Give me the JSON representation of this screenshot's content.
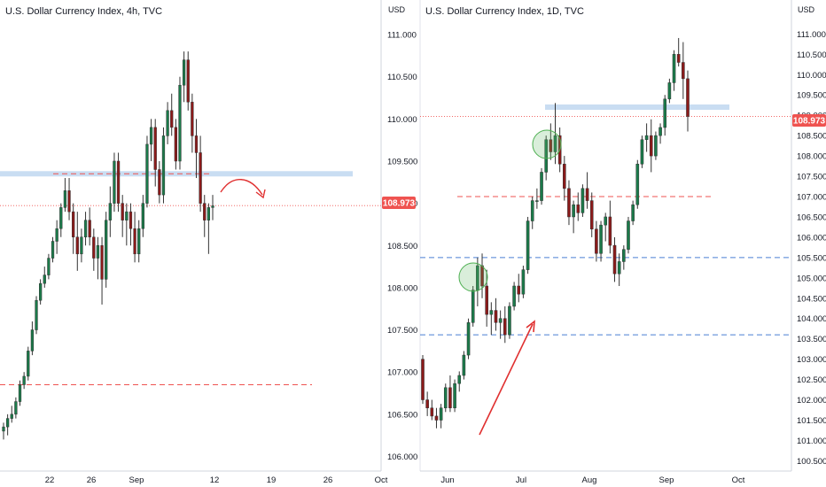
{
  "chart_data": [
    {
      "type": "candlestick",
      "title": "U.S. Dollar Currency Index, 4h, TVC",
      "unit": "USD",
      "ylim": [
        105.9,
        111.2
      ],
      "y_ticks": [
        "111.000",
        "110.500",
        "110.000",
        "109.500",
        "109.000",
        "108.500",
        "108.000",
        "107.500",
        "107.000",
        "106.500",
        "106.000"
      ],
      "x_ticks": [
        "22",
        "26",
        "Sep",
        "12",
        "19",
        "26",
        "Oct"
      ],
      "last_price": "108.973",
      "candles_ohlc": [
        [
          106.3,
          106.4,
          106.2,
          106.35
        ],
        [
          106.35,
          106.5,
          106.25,
          106.45
        ],
        [
          106.45,
          106.6,
          106.4,
          106.5
        ],
        [
          106.5,
          106.7,
          106.45,
          106.65
        ],
        [
          106.65,
          106.9,
          106.6,
          106.85
        ],
        [
          106.85,
          107.0,
          106.8,
          106.95
        ],
        [
          106.95,
          107.3,
          106.9,
          107.25
        ],
        [
          107.25,
          107.6,
          107.2,
          107.5
        ],
        [
          107.5,
          107.9,
          107.45,
          107.85
        ],
        [
          107.85,
          108.1,
          107.8,
          108.05
        ],
        [
          108.05,
          108.25,
          108.0,
          108.15
        ],
        [
          108.15,
          108.4,
          108.1,
          108.35
        ],
        [
          108.35,
          108.6,
          108.3,
          108.55
        ],
        [
          108.55,
          108.8,
          108.4,
          108.7
        ],
        [
          108.7,
          109.0,
          108.6,
          108.95
        ],
        [
          108.95,
          109.3,
          108.9,
          109.15
        ],
        [
          109.15,
          109.3,
          108.8,
          108.9
        ],
        [
          108.9,
          109.0,
          108.4,
          108.6
        ],
        [
          108.6,
          108.9,
          108.2,
          108.4
        ],
        [
          108.4,
          108.7,
          108.3,
          108.6
        ],
        [
          108.6,
          108.9,
          108.5,
          108.8
        ],
        [
          108.8,
          108.95,
          108.5,
          108.6
        ],
        [
          108.6,
          108.7,
          108.2,
          108.35
        ],
        [
          108.35,
          108.6,
          108.1,
          108.5
        ],
        [
          108.5,
          108.6,
          107.8,
          108.1
        ],
        [
          108.1,
          108.9,
          108.0,
          108.8
        ],
        [
          108.8,
          109.2,
          108.6,
          109.0
        ],
        [
          109.0,
          109.6,
          108.9,
          109.5
        ],
        [
          109.5,
          109.6,
          108.9,
          109.0
        ],
        [
          109.0,
          109.1,
          108.6,
          108.8
        ],
        [
          108.8,
          109.0,
          108.5,
          108.9
        ],
        [
          108.9,
          109.0,
          108.5,
          108.7
        ],
        [
          108.7,
          108.9,
          108.3,
          108.4
        ],
        [
          108.4,
          108.8,
          108.3,
          108.7
        ],
        [
          108.7,
          109.1,
          108.6,
          109.0
        ],
        [
          109.0,
          109.8,
          108.95,
          109.7
        ],
        [
          109.7,
          110.0,
          109.5,
          109.9
        ],
        [
          109.9,
          110.0,
          109.2,
          109.4
        ],
        [
          109.4,
          109.5,
          109.0,
          109.1
        ],
        [
          109.1,
          109.9,
          109.0,
          109.8
        ],
        [
          109.8,
          110.2,
          109.7,
          110.1
        ],
        [
          110.1,
          110.3,
          109.8,
          109.9
        ],
        [
          109.9,
          110.0,
          109.4,
          109.5
        ],
        [
          109.5,
          110.5,
          109.4,
          110.4
        ],
        [
          110.4,
          110.8,
          110.2,
          110.7
        ],
        [
          110.7,
          110.8,
          110.1,
          110.2
        ],
        [
          110.2,
          110.3,
          109.6,
          109.8
        ],
        [
          109.8,
          110.0,
          109.3,
          109.6
        ],
        [
          109.6,
          109.8,
          108.9,
          109.0
        ],
        [
          109.0,
          109.1,
          108.6,
          108.8
        ],
        [
          108.8,
          109.0,
          108.4,
          108.95
        ],
        [
          108.95,
          109.1,
          108.8,
          108.97
        ]
      ],
      "annotations": {
        "resistance_band": 109.35,
        "red_dashed_levels": [
          109.35,
          106.85
        ],
        "last_price_line": 108.973,
        "curved_arrow": "projected move"
      }
    },
    {
      "type": "candlestick",
      "title": "U.S. Dollar Currency Index, 1D, TVC",
      "unit": "USD",
      "ylim": [
        100.4,
        111.4
      ],
      "y_ticks": [
        "111.000",
        "110.500",
        "110.000",
        "109.500",
        "109.000",
        "108.500",
        "108.000",
        "107.500",
        "107.000",
        "106.500",
        "106.000",
        "105.500",
        "105.000",
        "104.500",
        "104.000",
        "103.500",
        "103.000",
        "102.500",
        "102.000",
        "101.500",
        "101.000",
        "100.500"
      ],
      "x_ticks": [
        "Jun",
        "Jul",
        "Aug",
        "Sep",
        "Oct"
      ],
      "last_price": "108.973",
      "candles_ohlc": [
        [
          103.0,
          103.1,
          101.9,
          102.0
        ],
        [
          102.0,
          102.2,
          101.6,
          101.8
        ],
        [
          101.8,
          102.0,
          101.5,
          101.6
        ],
        [
          101.6,
          101.8,
          101.3,
          101.5
        ],
        [
          101.5,
          101.9,
          101.3,
          101.8
        ],
        [
          101.8,
          102.4,
          101.7,
          102.3
        ],
        [
          102.3,
          102.6,
          101.7,
          101.8
        ],
        [
          101.8,
          102.5,
          101.7,
          102.4
        ],
        [
          102.4,
          102.7,
          102.2,
          102.6
        ],
        [
          102.6,
          103.2,
          102.5,
          103.1
        ],
        [
          103.1,
          104.0,
          103.0,
          103.9
        ],
        [
          103.9,
          104.8,
          103.8,
          104.7
        ],
        [
          104.7,
          105.5,
          104.3,
          105.3
        ],
        [
          105.3,
          105.6,
          104.5,
          104.8
        ],
        [
          104.8,
          105.2,
          103.8,
          104.1
        ],
        [
          104.1,
          104.4,
          103.6,
          104.2
        ],
        [
          104.2,
          104.5,
          103.7,
          103.9
        ],
        [
          103.9,
          104.2,
          103.5,
          104.0
        ],
        [
          104.0,
          104.3,
          103.4,
          103.6
        ],
        [
          103.6,
          104.4,
          103.5,
          104.3
        ],
        [
          104.3,
          104.9,
          104.2,
          104.8
        ],
        [
          104.8,
          105.1,
          104.4,
          104.6
        ],
        [
          104.6,
          105.3,
          104.5,
          105.2
        ],
        [
          105.2,
          106.5,
          105.1,
          106.4
        ],
        [
          106.4,
          107.0,
          106.2,
          106.9
        ],
        [
          106.9,
          107.2,
          106.7,
          106.9
        ],
        [
          106.9,
          107.7,
          106.8,
          107.6
        ],
        [
          107.6,
          108.5,
          107.4,
          108.4
        ],
        [
          108.4,
          108.8,
          107.9,
          108.1
        ],
        [
          108.1,
          109.3,
          107.8,
          108.5
        ],
        [
          108.5,
          108.7,
          107.6,
          107.8
        ],
        [
          107.8,
          108.0,
          106.9,
          107.2
        ],
        [
          107.2,
          107.4,
          106.3,
          106.5
        ],
        [
          106.5,
          106.9,
          106.1,
          106.8
        ],
        [
          106.8,
          107.1,
          106.4,
          106.6
        ],
        [
          106.6,
          107.3,
          106.5,
          107.2
        ],
        [
          107.2,
          107.6,
          106.7,
          106.9
        ],
        [
          106.9,
          107.1,
          106.0,
          106.2
        ],
        [
          106.2,
          106.4,
          105.4,
          105.6
        ],
        [
          105.6,
          106.4,
          105.4,
          106.3
        ],
        [
          106.3,
          106.6,
          105.9,
          106.5
        ],
        [
          106.5,
          106.9,
          105.6,
          105.8
        ],
        [
          105.8,
          106.0,
          104.9,
          105.1
        ],
        [
          105.1,
          105.6,
          104.8,
          105.4
        ],
        [
          105.4,
          105.8,
          105.2,
          105.7
        ],
        [
          105.7,
          106.5,
          105.6,
          106.4
        ],
        [
          106.4,
          106.9,
          106.3,
          106.8
        ],
        [
          106.8,
          107.9,
          106.7,
          107.8
        ],
        [
          107.8,
          108.5,
          107.7,
          108.4
        ],
        [
          108.4,
          108.8,
          108.1,
          108.5
        ],
        [
          108.5,
          108.9,
          107.6,
          108.0
        ],
        [
          108.0,
          108.6,
          107.9,
          108.5
        ],
        [
          108.5,
          108.8,
          108.3,
          108.7
        ],
        [
          108.7,
          109.5,
          108.5,
          109.4
        ],
        [
          109.4,
          109.9,
          109.3,
          109.8
        ],
        [
          109.8,
          110.6,
          109.6,
          110.5
        ],
        [
          110.5,
          110.9,
          110.2,
          110.3
        ],
        [
          110.3,
          110.8,
          109.4,
          109.9
        ],
        [
          109.9,
          110.1,
          108.6,
          108.97
        ]
      ],
      "annotations": {
        "resistance_band": 109.2,
        "red_dashed_levels": [
          107.0
        ],
        "blue_dashed_levels": [
          105.5,
          103.6
        ],
        "last_price_line": 108.973,
        "circled_highs": [
          "first peak",
          "July peak"
        ],
        "straight_arrow": "uptrend"
      }
    }
  ],
  "colors": {
    "up": "#26a69a",
    "up_dark": "#1b7a4a",
    "down": "#ef5350",
    "down_dark": "#8b1a1a",
    "wick": "#333333",
    "band": "#c9ddf2",
    "red_dash": "#ef5350",
    "blue_dash": "#4a7fd4",
    "price_tag": "#ef5350",
    "arrow": "#e03030",
    "circle_fill": "rgba(102,187,106,0.25)",
    "circle_stroke": "#4caf50",
    "axis": "#131722",
    "border": "#d1d4dc"
  }
}
